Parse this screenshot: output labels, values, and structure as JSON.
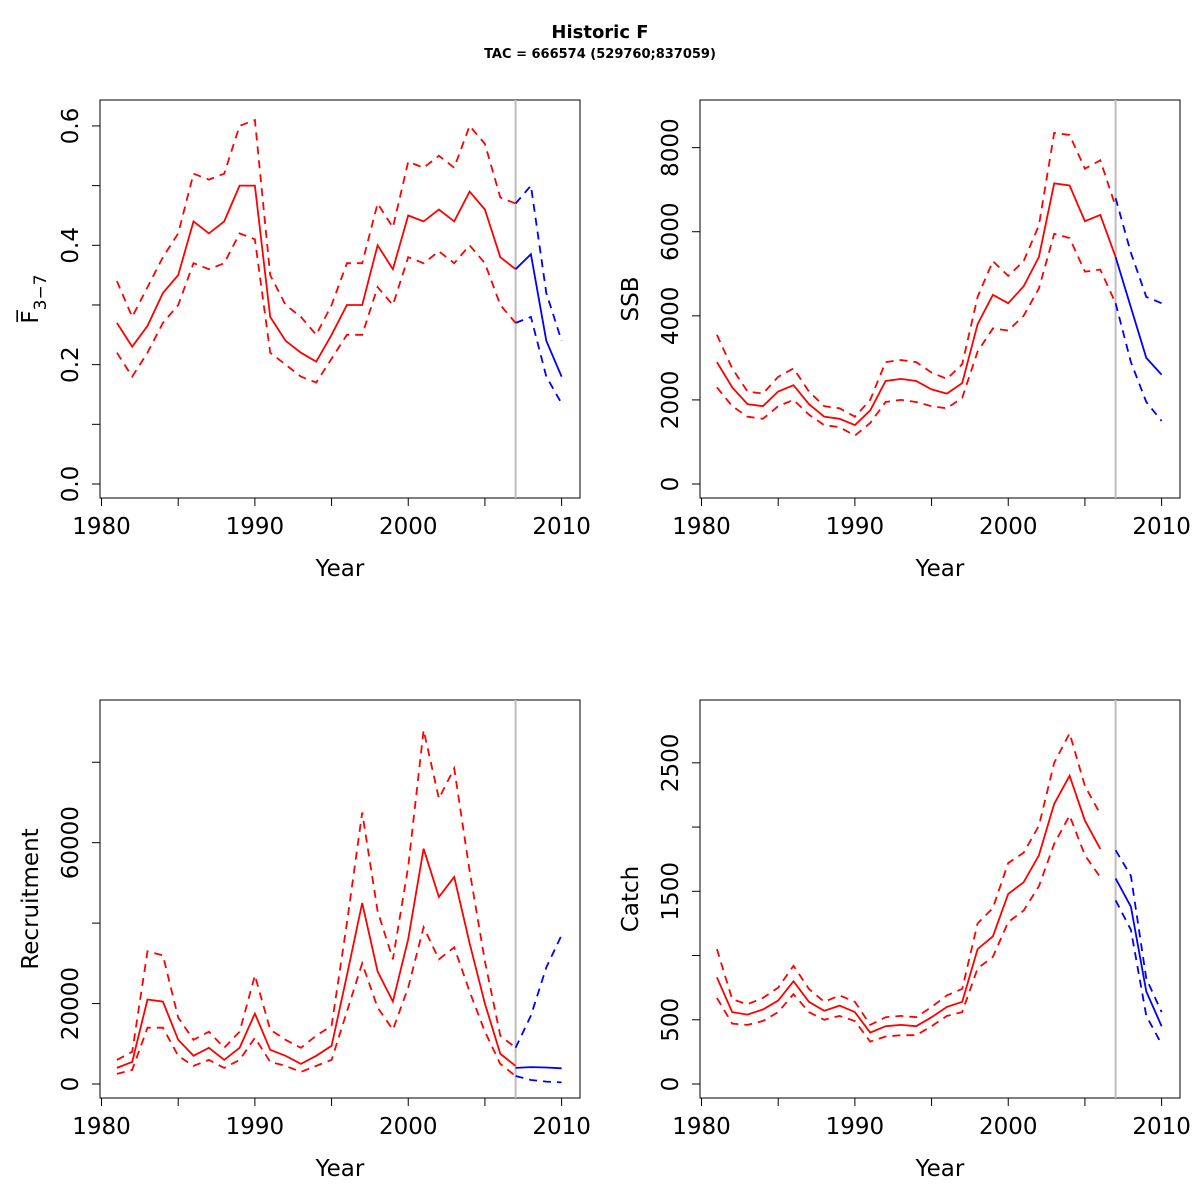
{
  "title": "Historic F",
  "subtitle": "TAC = 666574 (529760;837059)",
  "colors": {
    "historic": "#ff0000",
    "forecast": "#0000ff",
    "divider": "#bebebe",
    "axis": "#000000"
  },
  "divider_year": 2007,
  "chart_data": [
    {
      "type": "line",
      "id": "f",
      "xlabel": "Year",
      "ylabel": "F̅",
      "ylabel_sub": "3−7",
      "xlim": [
        1981,
        2010
      ],
      "ylim": [
        0,
        0.6
      ],
      "xticks": [
        1980,
        1985,
        1990,
        1995,
        2000,
        2005,
        2010
      ],
      "xtick_labels": [
        "1980",
        "",
        "1990",
        "",
        "2000",
        "",
        "2010"
      ],
      "yticks": [
        0.0,
        0.1,
        0.2,
        0.3,
        0.4,
        0.5,
        0.6
      ],
      "ytick_labels": [
        "0.0",
        "",
        "0.2",
        "",
        "0.4",
        "",
        "0.6"
      ],
      "historic": {
        "x": [
          1981,
          1982,
          1983,
          1984,
          1985,
          1986,
          1987,
          1988,
          1989,
          1990,
          1991,
          1992,
          1993,
          1994,
          1995,
          1996,
          1997,
          1998,
          1999,
          2000,
          2001,
          2002,
          2003,
          2004,
          2005,
          2006,
          2007
        ],
        "mid": [
          0.27,
          0.23,
          0.265,
          0.32,
          0.35,
          0.44,
          0.42,
          0.44,
          0.5,
          0.5,
          0.28,
          0.24,
          0.22,
          0.205,
          0.25,
          0.3,
          0.3,
          0.4,
          0.36,
          0.45,
          0.44,
          0.46,
          0.44,
          0.49,
          0.46,
          0.38,
          0.36
        ],
        "upper": [
          0.34,
          0.28,
          0.33,
          0.38,
          0.42,
          0.52,
          0.51,
          0.52,
          0.6,
          0.61,
          0.35,
          0.3,
          0.28,
          0.25,
          0.3,
          0.37,
          0.37,
          0.47,
          0.43,
          0.54,
          0.53,
          0.55,
          0.53,
          0.6,
          0.57,
          0.48,
          0.47
        ],
        "lower": [
          0.22,
          0.18,
          0.22,
          0.27,
          0.3,
          0.37,
          0.36,
          0.37,
          0.42,
          0.41,
          0.22,
          0.2,
          0.18,
          0.17,
          0.21,
          0.25,
          0.25,
          0.33,
          0.3,
          0.38,
          0.37,
          0.39,
          0.37,
          0.4,
          0.37,
          0.3,
          0.27
        ]
      },
      "forecast": {
        "x": [
          2007,
          2008,
          2009,
          2010
        ],
        "mid": [
          0.36,
          0.385,
          0.24,
          0.18
        ],
        "upper": [
          0.47,
          0.5,
          0.32,
          0.24
        ],
        "lower": [
          0.27,
          0.28,
          0.18,
          0.135
        ]
      }
    },
    {
      "type": "line",
      "id": "ssb",
      "xlabel": "Year",
      "ylabel": "SSB",
      "xlim": [
        1981,
        2010
      ],
      "ylim": [
        0,
        8500
      ],
      "xticks": [
        1980,
        1985,
        1990,
        1995,
        2000,
        2005,
        2010
      ],
      "xtick_labels": [
        "1980",
        "",
        "1990",
        "",
        "2000",
        "",
        "2010"
      ],
      "yticks": [
        0,
        2000,
        4000,
        6000,
        8000
      ],
      "ytick_labels": [
        "0",
        "2000",
        "4000",
        "6000",
        "8000"
      ],
      "historic": {
        "x": [
          1981,
          1982,
          1983,
          1984,
          1985,
          1986,
          1987,
          1988,
          1989,
          1990,
          1991,
          1992,
          1993,
          1994,
          1995,
          1996,
          1997,
          1998,
          1999,
          2000,
          2001,
          2002,
          2003,
          2004,
          2005,
          2006,
          2007
        ],
        "mid": [
          2900,
          2300,
          1900,
          1850,
          2200,
          2350,
          1900,
          1600,
          1550,
          1400,
          1750,
          2450,
          2500,
          2450,
          2250,
          2150,
          2400,
          3800,
          4500,
          4300,
          4700,
          5400,
          7150,
          7100,
          6250,
          6400,
          5400
        ],
        "upper": [
          3550,
          2750,
          2200,
          2150,
          2550,
          2750,
          2200,
          1850,
          1800,
          1600,
          2000,
          2900,
          2950,
          2900,
          2650,
          2500,
          2850,
          4450,
          5300,
          4950,
          5300,
          6150,
          8350,
          8300,
          7500,
          7700,
          6600
        ],
        "lower": [
          2300,
          1850,
          1600,
          1550,
          1850,
          2000,
          1650,
          1400,
          1350,
          1150,
          1450,
          1950,
          2000,
          1950,
          1850,
          1800,
          2050,
          3150,
          3700,
          3650,
          4000,
          4650,
          5950,
          5850,
          5050,
          5100,
          4300
        ]
      },
      "forecast": {
        "x": [
          2007,
          2008,
          2009,
          2010
        ],
        "mid": [
          5400,
          4200,
          3000,
          2600
        ],
        "upper": [
          6800,
          5500,
          4450,
          4300
        ],
        "lower": [
          4300,
          2900,
          1950,
          1500
        ]
      }
    },
    {
      "type": "line",
      "id": "recruitment",
      "xlabel": "Year",
      "ylabel": "Recruitment",
      "xlim": [
        1981,
        2010
      ],
      "ylim": [
        0,
        91000
      ],
      "xticks": [
        1980,
        1985,
        1990,
        1995,
        2000,
        2005,
        2010
      ],
      "xtick_labels": [
        "1980",
        "",
        "1990",
        "",
        "2000",
        "",
        "2010"
      ],
      "yticks": [
        0,
        20000,
        40000,
        60000,
        80000
      ],
      "ytick_labels": [
        "0",
        "20000",
        "",
        "60000",
        ""
      ],
      "historic": {
        "x": [
          1981,
          1982,
          1983,
          1984,
          1985,
          1986,
          1987,
          1988,
          1989,
          1990,
          1991,
          1992,
          1993,
          1994,
          1995,
          1996,
          1997,
          1998,
          1999,
          2000,
          2001,
          2002,
          2003,
          2004,
          2005,
          2006,
          2007
        ],
        "mid": [
          4000,
          5500,
          21000,
          20500,
          11000,
          7000,
          9000,
          6000,
          9000,
          17500,
          8500,
          7000,
          5000,
          7000,
          9500,
          27000,
          45000,
          28000,
          20500,
          36000,
          58500,
          46500,
          51500,
          35000,
          20000,
          7500,
          4500
        ],
        "upper": [
          6000,
          8000,
          33000,
          32000,
          16500,
          11000,
          13000,
          9000,
          13000,
          27000,
          13500,
          11000,
          9000,
          12000,
          14500,
          40000,
          67500,
          43000,
          31000,
          54000,
          88000,
          71000,
          78500,
          53000,
          30500,
          12000,
          9000
        ],
        "lower": [
          2500,
          3500,
          14000,
          14000,
          7000,
          4500,
          6000,
          4000,
          6000,
          11500,
          5500,
          4500,
          3000,
          4500,
          6000,
          18000,
          30000,
          19000,
          13500,
          24000,
          39000,
          31000,
          34000,
          23000,
          13000,
          5000,
          2000
        ]
      },
      "forecast": {
        "x": [
          2007,
          2008,
          2009,
          2010
        ],
        "mid": [
          4000,
          4200,
          4100,
          3900
        ],
        "upper": [
          9000,
          17000,
          29000,
          37000
        ],
        "lower": [
          2000,
          1000,
          600,
          400
        ]
      }
    },
    {
      "type": "line",
      "id": "catch",
      "xlabel": "Year",
      "ylabel": "Catch",
      "xlim": [
        1981,
        2010
      ],
      "ylim": [
        0,
        2850
      ],
      "xticks": [
        1980,
        1985,
        1990,
        1995,
        2000,
        2005,
        2010
      ],
      "xtick_labels": [
        "1980",
        "",
        "1990",
        "",
        "2000",
        "",
        "2010"
      ],
      "yticks": [
        0,
        500,
        1000,
        1500,
        2000,
        2500
      ],
      "ytick_labels": [
        "0",
        "500",
        "",
        "1500",
        "",
        "2500"
      ],
      "historic": {
        "x": [
          1981,
          1982,
          1983,
          1984,
          1985,
          1986,
          1987,
          1988,
          1989,
          1990,
          1991,
          1992,
          1993,
          1994,
          1995,
          1996,
          1997,
          1998,
          1999,
          2000,
          2001,
          2002,
          2003,
          2004,
          2005,
          2006
        ],
        "mid": [
          830,
          560,
          540,
          580,
          650,
          800,
          640,
          570,
          610,
          560,
          400,
          450,
          460,
          450,
          520,
          600,
          640,
          1050,
          1150,
          1480,
          1570,
          1780,
          2180,
          2400,
          2050,
          1830
        ],
        "upper": [
          1050,
          660,
          620,
          670,
          750,
          920,
          740,
          640,
          690,
          640,
          460,
          520,
          530,
          520,
          600,
          690,
          740,
          1250,
          1370,
          1720,
          1800,
          2010,
          2500,
          2730,
          2320,
          2100
        ],
        "lower": [
          670,
          470,
          460,
          490,
          560,
          700,
          560,
          500,
          530,
          490,
          330,
          370,
          380,
          380,
          450,
          530,
          560,
          900,
          990,
          1260,
          1350,
          1540,
          1870,
          2090,
          1780,
          1610
        ]
      },
      "forecast": {
        "x": [
          2007,
          2008,
          2009,
          2010
        ],
        "mid": [
          1600,
          1380,
          720,
          450
        ],
        "upper": [
          1820,
          1620,
          820,
          560
        ],
        "lower": [
          1430,
          1200,
          530,
          310
        ]
      }
    }
  ]
}
